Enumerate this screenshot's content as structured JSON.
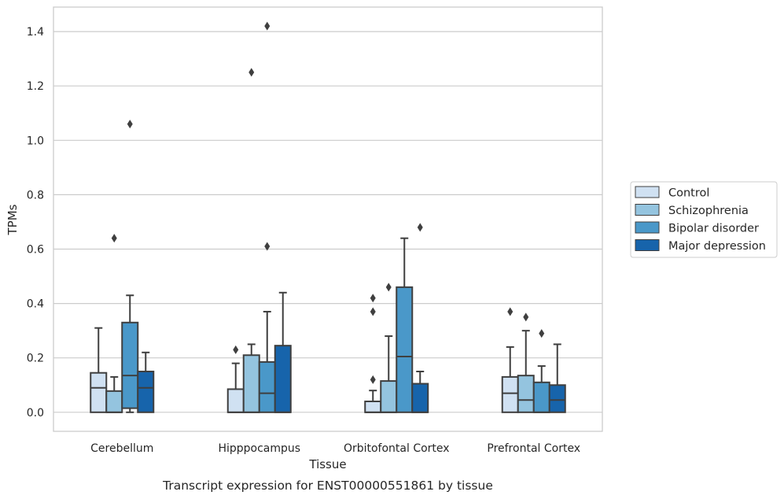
{
  "caption": "Transcript expression for ENST00000551861 by tissue",
  "chart_data": {
    "type": "box",
    "xlabel": "Tissue",
    "ylabel": "TPMs",
    "ylim": [
      -0.07,
      1.49
    ],
    "yticks": [
      "0.0",
      "0.2",
      "0.4",
      "0.6",
      "0.8",
      "1.0",
      "1.2",
      "1.4"
    ],
    "ytick_values": [
      0.0,
      0.2,
      0.4,
      0.6,
      0.8,
      1.0,
      1.2,
      1.4
    ],
    "grid": "horizontal",
    "legend_placement": "right",
    "categories": [
      "Cerebellum",
      "Hipppocampus",
      "Orbitofontal Cortex",
      "Prefrontal Cortex"
    ],
    "series": [
      {
        "name": "Control",
        "color": "#d0e1f2",
        "boxes": [
          {
            "q1": 0.0,
            "median": 0.09,
            "q3": 0.145,
            "whislo": 0.0,
            "whishi": 0.31,
            "fliers": []
          },
          {
            "q1": 0.0,
            "median": 0.0,
            "q3": 0.085,
            "whislo": 0.0,
            "whishi": 0.18,
            "fliers": [
              0.23
            ]
          },
          {
            "q1": 0.0,
            "median": 0.0,
            "q3": 0.04,
            "whislo": 0.0,
            "whishi": 0.08,
            "fliers": [
              0.12,
              0.37,
              0.42
            ]
          },
          {
            "q1": 0.0,
            "median": 0.07,
            "q3": 0.13,
            "whislo": 0.0,
            "whishi": 0.24,
            "fliers": [
              0.37
            ]
          }
        ]
      },
      {
        "name": "Schizophrenia",
        "color": "#94c4df",
        "boxes": [
          {
            "q1": 0.0,
            "median": 0.0,
            "q3": 0.078,
            "whislo": 0.0,
            "whishi": 0.13,
            "fliers": [
              0.64
            ]
          },
          {
            "q1": 0.0,
            "median": 0.0,
            "q3": 0.21,
            "whislo": 0.0,
            "whishi": 0.25,
            "fliers": [
              1.25
            ]
          },
          {
            "q1": 0.0,
            "median": 0.0,
            "q3": 0.115,
            "whislo": 0.0,
            "whishi": 0.28,
            "fliers": [
              0.46
            ]
          },
          {
            "q1": 0.0,
            "median": 0.045,
            "q3": 0.135,
            "whislo": 0.0,
            "whishi": 0.3,
            "fliers": [
              0.35
            ]
          }
        ]
      },
      {
        "name": "Bipolar disorder",
        "color": "#4a98c9",
        "boxes": [
          {
            "q1": 0.015,
            "median": 0.135,
            "q3": 0.33,
            "whislo": 0.0,
            "whishi": 0.43,
            "fliers": [
              1.06
            ]
          },
          {
            "q1": 0.0,
            "median": 0.07,
            "q3": 0.185,
            "whislo": 0.0,
            "whishi": 0.37,
            "fliers": [
              0.61,
              1.42
            ]
          },
          {
            "q1": 0.0,
            "median": 0.205,
            "q3": 0.46,
            "whislo": 0.0,
            "whishi": 0.64,
            "fliers": []
          },
          {
            "q1": 0.0,
            "median": 0.0,
            "q3": 0.11,
            "whislo": 0.0,
            "whishi": 0.17,
            "fliers": [
              0.29
            ]
          }
        ]
      },
      {
        "name": "Major depression",
        "color": "#1764ab",
        "boxes": [
          {
            "q1": 0.0,
            "median": 0.09,
            "q3": 0.15,
            "whislo": 0.0,
            "whishi": 0.22,
            "fliers": []
          },
          {
            "q1": 0.0,
            "median": 0.0,
            "q3": 0.245,
            "whislo": 0.0,
            "whishi": 0.44,
            "fliers": []
          },
          {
            "q1": 0.0,
            "median": 0.0,
            "q3": 0.105,
            "whislo": 0.0,
            "whishi": 0.15,
            "fliers": [
              0.68
            ]
          },
          {
            "q1": 0.0,
            "median": 0.045,
            "q3": 0.1,
            "whislo": 0.0,
            "whishi": 0.25,
            "fliers": []
          }
        ]
      }
    ]
  }
}
